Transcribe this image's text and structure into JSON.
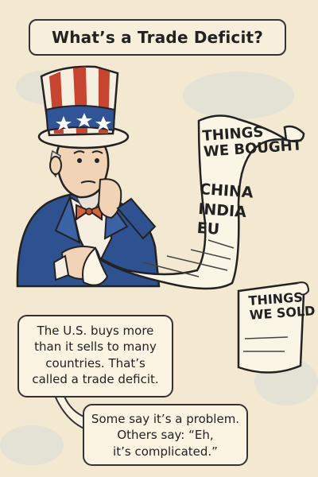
{
  "title": "What’s a Trade Deficit?",
  "scroll_bought": {
    "title_line1": "THINGS",
    "title_line2": "WE BOUGHT",
    "countries": [
      "CHINA",
      "INDIA",
      "EU"
    ]
  },
  "scroll_sold": {
    "title_line1": "THINGS",
    "title_line2": "WE SOLD"
  },
  "bubble1": {
    "lines": [
      "The U.S. buys more",
      "than it sells to many",
      "countries. That’s",
      "called a trade deficit."
    ]
  },
  "bubble2": {
    "lines": [
      "Some say it’s a problem.",
      "Others say: “Eh,",
      "it’s complicated.”"
    ]
  },
  "colors": {
    "background": "#f3e8d0",
    "coat": "#2e5290",
    "hat_red": "#c9442e",
    "hat_blue": "#2f5598",
    "bowtie": "#d9643a",
    "paper": "#fbf5e6"
  }
}
